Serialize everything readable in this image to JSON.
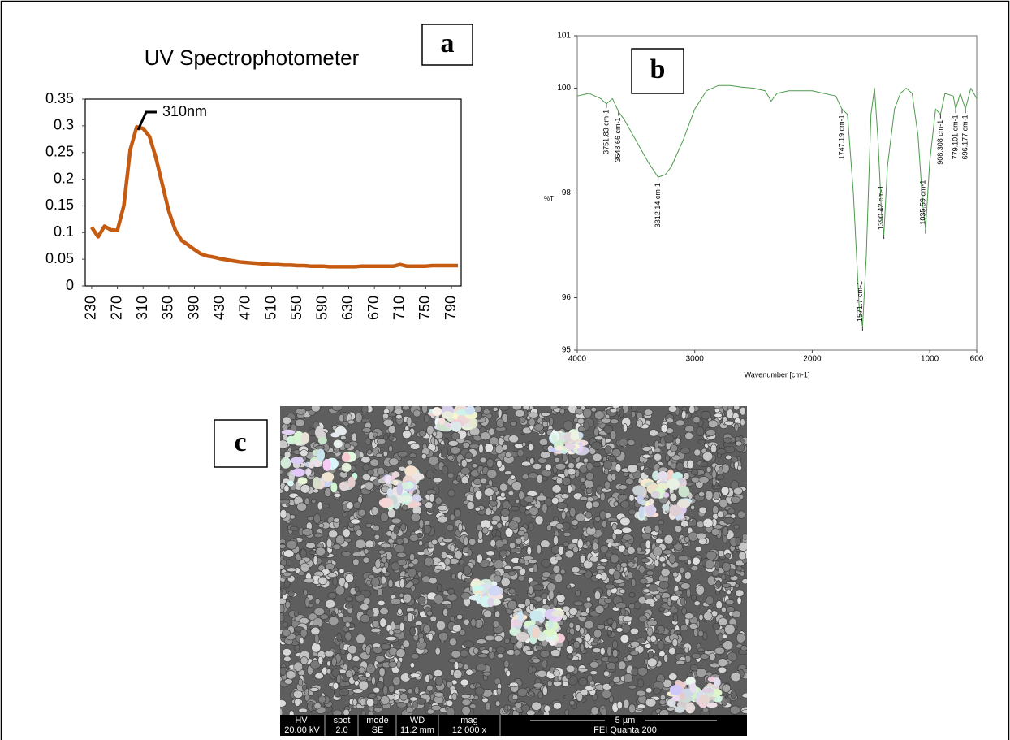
{
  "panels": {
    "a": "a",
    "b": "b",
    "c": "c"
  },
  "chart_data": [
    {
      "type": "line",
      "title": "UV Spectrophotometer",
      "annotations": [
        "310nm"
      ],
      "color": "#c55a11",
      "x": [
        230,
        240,
        250,
        260,
        270,
        280,
        290,
        300,
        310,
        320,
        330,
        340,
        350,
        360,
        370,
        380,
        390,
        400,
        410,
        420,
        430,
        440,
        450,
        460,
        470,
        480,
        490,
        500,
        510,
        520,
        530,
        540,
        550,
        560,
        570,
        580,
        590,
        600,
        610,
        620,
        630,
        640,
        650,
        660,
        670,
        680,
        690,
        700,
        710,
        720,
        730,
        740,
        750,
        760,
        770,
        780,
        790,
        800
      ],
      "values": [
        0.11,
        0.092,
        0.112,
        0.105,
        0.104,
        0.15,
        0.255,
        0.298,
        0.295,
        0.28,
        0.24,
        0.19,
        0.14,
        0.105,
        0.085,
        0.077,
        0.068,
        0.06,
        0.056,
        0.054,
        0.051,
        0.049,
        0.047,
        0.045,
        0.044,
        0.043,
        0.042,
        0.041,
        0.04,
        0.04,
        0.039,
        0.039,
        0.038,
        0.038,
        0.037,
        0.037,
        0.037,
        0.036,
        0.036,
        0.036,
        0.036,
        0.036,
        0.037,
        0.037,
        0.037,
        0.037,
        0.037,
        0.037,
        0.04,
        0.037,
        0.037,
        0.037,
        0.037,
        0.038,
        0.038,
        0.038,
        0.038,
        0.038
      ],
      "xlim": [
        220,
        805
      ],
      "ylim": [
        0,
        0.35
      ],
      "xticks": [
        230,
        270,
        310,
        350,
        390,
        430,
        470,
        510,
        550,
        590,
        630,
        670,
        710,
        750,
        790
      ],
      "yticks": [
        0,
        0.05,
        0.1,
        0.15,
        0.2,
        0.25,
        0.3,
        0.35
      ]
    },
    {
      "type": "line",
      "xlabel": "Wavenumber [cm-1]",
      "ylabel": "%T",
      "color": "#4d9a4d",
      "x": [
        4000,
        3900,
        3800,
        3751.83,
        3700,
        3648.66,
        3600,
        3500,
        3400,
        3312.14,
        3250,
        3200,
        3100,
        3000,
        2900,
        2800,
        2700,
        2600,
        2500,
        2400,
        2350,
        2300,
        2200,
        2100,
        2000,
        1900,
        1800,
        1747.19,
        1700,
        1650,
        1600,
        1571.7,
        1540,
        1500,
        1470,
        1440,
        1410,
        1390.42,
        1360,
        1300,
        1250,
        1200,
        1150,
        1100,
        1060,
        1035.59,
        1000,
        950,
        908.308,
        870,
        800,
        779.101,
        740,
        696.177,
        650,
        600
      ],
      "values": [
        99.85,
        99.9,
        99.8,
        99.7,
        99.8,
        99.55,
        99.4,
        99.0,
        98.6,
        98.3,
        98.35,
        98.5,
        99.0,
        99.6,
        99.95,
        100.05,
        100.05,
        100.02,
        100.0,
        99.95,
        99.75,
        99.9,
        99.95,
        99.95,
        99.95,
        99.9,
        99.85,
        99.6,
        99.5,
        98.0,
        95.8,
        95.45,
        96.8,
        99.5,
        100.0,
        99.0,
        97.6,
        97.2,
        98.5,
        99.6,
        99.9,
        100.0,
        99.9,
        99.1,
        97.8,
        97.3,
        98.6,
        99.6,
        99.5,
        99.9,
        99.85,
        99.6,
        99.9,
        99.6,
        100.0,
        99.8
      ],
      "xlim": [
        4000,
        600
      ],
      "ylim": [
        95,
        101
      ],
      "xticks": [
        4000,
        3000,
        2000,
        1000,
        600
      ],
      "yticks": [
        95,
        96,
        98,
        100,
        101
      ],
      "peaks": [
        {
          "x": 3751.83,
          "label": "3751.83 cm-1"
        },
        {
          "x": 3648.66,
          "label": "3648.66 cm-1"
        },
        {
          "x": 3312.14,
          "label": "3312.14 cm-1"
        },
        {
          "x": 1747.19,
          "label": "1747.19 cm-1"
        },
        {
          "x": 1571.7,
          "label": "1571.7 cm-1"
        },
        {
          "x": 1390.42,
          "label": "1390.42 cm-1"
        },
        {
          "x": 1035.59,
          "label": "1035.59 cm-1"
        },
        {
          "x": 908.308,
          "label": "908.308 cm-1"
        },
        {
          "x": 779.101,
          "label": "779.101 cm-1"
        },
        {
          "x": 696.177,
          "label": "696.177 cm-1"
        }
      ]
    }
  ],
  "sem": {
    "labels": [
      "HV",
      "spot",
      "mode",
      "WD",
      "mag"
    ],
    "settings": [
      "20.00 kV",
      "2.0",
      "SE",
      "11.2 mm",
      "12 000 x"
    ],
    "scale": "5 µm",
    "instrument": "FEI Quanta 200"
  }
}
